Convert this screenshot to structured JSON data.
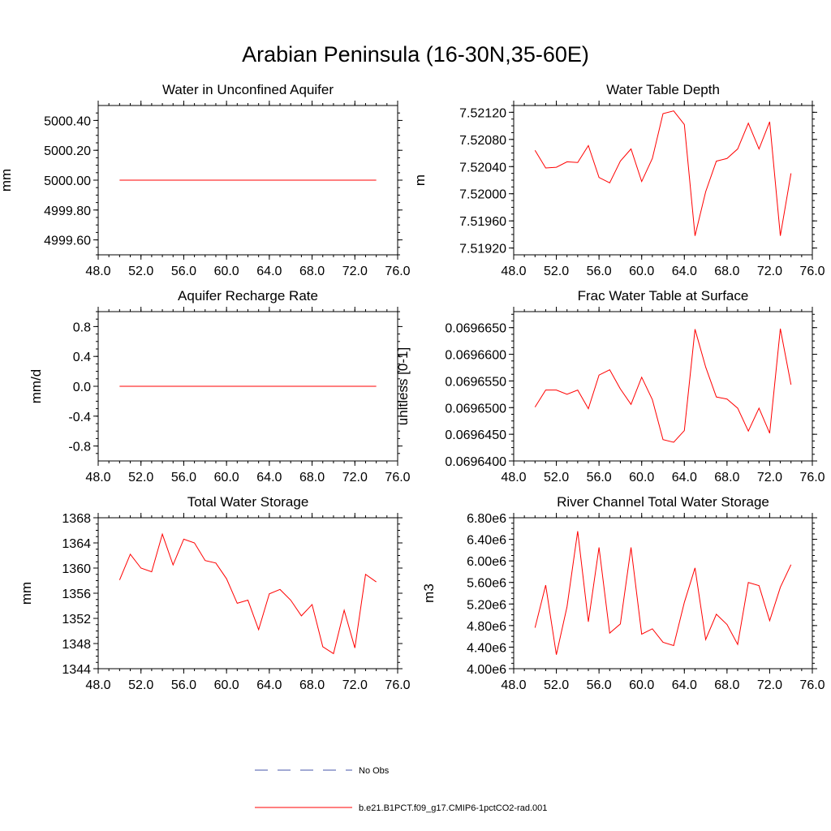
{
  "title": "Arabian Peninsula (16-30N,35-60E)",
  "chart_data": [
    {
      "type": "line",
      "title": "Water in Unconfined Aquifer",
      "ylabel": "mm",
      "xlim": [
        48,
        76
      ],
      "ylim": [
        4999.5,
        5000.5
      ],
      "xticks": [
        48,
        52,
        56,
        60,
        64,
        68,
        72,
        76
      ],
      "xtick_labels": [
        "48.0",
        "52.0",
        "56.0",
        "60.0",
        "64.0",
        "68.0",
        "72.0",
        "76.0"
      ],
      "yticks": [
        4999.6,
        4999.8,
        5000.0,
        5000.2,
        5000.4
      ],
      "ytick_labels": [
        "4999.60",
        "4999.80",
        "5000.00",
        "5000.20",
        "5000.40"
      ],
      "x": [
        50,
        51,
        52,
        53,
        54,
        55,
        56,
        57,
        58,
        59,
        60,
        61,
        62,
        63,
        64,
        65,
        66,
        67,
        68,
        69,
        70,
        71,
        72,
        73,
        74
      ],
      "series": [
        {
          "values": [
            5000.0,
            5000.0,
            5000.0,
            5000.0,
            5000.0,
            5000.0,
            5000.0,
            5000.0,
            5000.0,
            5000.0,
            5000.0,
            5000.0,
            5000.0,
            5000.0,
            5000.0,
            5000.0,
            5000.0,
            5000.0,
            5000.0,
            5000.0,
            5000.0,
            5000.0,
            5000.0,
            5000.0,
            5000.0
          ]
        }
      ]
    },
    {
      "type": "line",
      "title": "Water Table Depth",
      "ylabel": "m",
      "xlim": [
        48,
        76
      ],
      "ylim": [
        7.5191,
        7.5213
      ],
      "xticks": [
        48,
        52,
        56,
        60,
        64,
        68,
        72,
        76
      ],
      "xtick_labels": [
        "48.0",
        "52.0",
        "56.0",
        "60.0",
        "64.0",
        "68.0",
        "72.0",
        "76.0"
      ],
      "yticks": [
        7.5192,
        7.5196,
        7.52,
        7.5204,
        7.5208,
        7.5212
      ],
      "ytick_labels": [
        "7.51920",
        "7.51960",
        "7.52000",
        "7.52040",
        "7.52080",
        "7.52120"
      ],
      "x": [
        50,
        51,
        52,
        53,
        54,
        55,
        56,
        57,
        58,
        59,
        60,
        61,
        62,
        63,
        64,
        65,
        66,
        67,
        68,
        69,
        70,
        71,
        72,
        73,
        74
      ],
      "series": [
        {
          "values": [
            7.52064,
            7.52038,
            7.52039,
            7.52047,
            7.52046,
            7.52071,
            7.52024,
            7.52016,
            7.52048,
            7.52066,
            7.52018,
            7.52052,
            7.52118,
            7.52122,
            7.52102,
            7.51938,
            7.52003,
            7.52048,
            7.52052,
            7.52066,
            7.52104,
            7.52066,
            7.52106,
            7.51938,
            7.5203
          ]
        }
      ]
    },
    {
      "type": "line",
      "title": "Aquifer Recharge Rate",
      "ylabel": "mm/d",
      "xlim": [
        48,
        76
      ],
      "ylim": [
        -1.0,
        1.0
      ],
      "xticks": [
        48,
        52,
        56,
        60,
        64,
        68,
        72,
        76
      ],
      "xtick_labels": [
        "48.0",
        "52.0",
        "56.0",
        "60.0",
        "64.0",
        "68.0",
        "72.0",
        "76.0"
      ],
      "yticks": [
        -0.8,
        -0.4,
        0.0,
        0.4,
        0.8
      ],
      "ytick_labels": [
        "-0.8",
        "-0.4",
        "0.0",
        "0.4",
        "0.8"
      ],
      "x": [
        50,
        51,
        52,
        53,
        54,
        55,
        56,
        57,
        58,
        59,
        60,
        61,
        62,
        63,
        64,
        65,
        66,
        67,
        68,
        69,
        70,
        71,
        72,
        73,
        74
      ],
      "series": [
        {
          "values": [
            0,
            0,
            0,
            0,
            0,
            0,
            0,
            0,
            0,
            0,
            0,
            0,
            0,
            0,
            0,
            0,
            0,
            0,
            0,
            0,
            0,
            0,
            0,
            0,
            0
          ]
        }
      ]
    },
    {
      "type": "line",
      "title": "Frac Water Table at Surface",
      "ylabel": "unitless [0-1]",
      "xlim": [
        48,
        76
      ],
      "ylim": [
        0.06964,
        0.069668
      ],
      "xticks": [
        48,
        52,
        56,
        60,
        64,
        68,
        72,
        76
      ],
      "xtick_labels": [
        "48.0",
        "52.0",
        "56.0",
        "60.0",
        "64.0",
        "68.0",
        "72.0",
        "76.0"
      ],
      "yticks": [
        0.06964,
        0.069645,
        0.06965,
        0.069655,
        0.06966,
        0.069665
      ],
      "ytick_labels": [
        "0.0696400",
        "0.0696450",
        "0.0696500",
        "0.0696550",
        "0.0696600",
        "0.0696650"
      ],
      "x": [
        50,
        51,
        52,
        53,
        54,
        55,
        56,
        57,
        58,
        59,
        60,
        61,
        62,
        63,
        64,
        65,
        66,
        67,
        68,
        69,
        70,
        71,
        72,
        73,
        74
      ],
      "series": [
        {
          "values": [
            0.0696501,
            0.0696533,
            0.0696533,
            0.0696525,
            0.0696533,
            0.0696498,
            0.0696561,
            0.0696571,
            0.0696535,
            0.0696506,
            0.0696557,
            0.0696515,
            0.069644,
            0.0696435,
            0.0696457,
            0.0696647,
            0.0696576,
            0.069652,
            0.0696516,
            0.0696499,
            0.0696456,
            0.0696499,
            0.0696452,
            0.0696648,
            0.0696543
          ]
        }
      ]
    },
    {
      "type": "line",
      "title": "Total Water Storage",
      "ylabel": "mm",
      "xlim": [
        48,
        76
      ],
      "ylim": [
        1344,
        1368
      ],
      "xticks": [
        48,
        52,
        56,
        60,
        64,
        68,
        72,
        76
      ],
      "xtick_labels": [
        "48.0",
        "52.0",
        "56.0",
        "60.0",
        "64.0",
        "68.0",
        "72.0",
        "76.0"
      ],
      "yticks": [
        1344,
        1348,
        1352,
        1356,
        1360,
        1364,
        1368
      ],
      "ytick_labels": [
        "1344",
        "1348",
        "1352",
        "1356",
        "1360",
        "1364",
        "1368"
      ],
      "x": [
        50,
        51,
        52,
        53,
        54,
        55,
        56,
        57,
        58,
        59,
        60,
        61,
        62,
        63,
        64,
        65,
        66,
        67,
        68,
        69,
        70,
        71,
        72,
        73,
        74
      ],
      "series": [
        {
          "values": [
            1358.1,
            1362.2,
            1360.0,
            1359.4,
            1365.4,
            1360.5,
            1364.6,
            1364.0,
            1361.2,
            1360.8,
            1358.3,
            1354.4,
            1354.9,
            1350.2,
            1355.9,
            1356.6,
            1354.9,
            1352.4,
            1354.2,
            1347.5,
            1346.4,
            1353.3,
            1347.3,
            1359.0,
            1357.8
          ]
        }
      ]
    },
    {
      "type": "line",
      "title": "River Channel Total Water Storage",
      "ylabel": "m3",
      "xlim": [
        48,
        76
      ],
      "ylim": [
        4000000,
        6800000
      ],
      "xticks": [
        48,
        52,
        56,
        60,
        64,
        68,
        72,
        76
      ],
      "xtick_labels": [
        "48.0",
        "52.0",
        "56.0",
        "60.0",
        "64.0",
        "68.0",
        "72.0",
        "76.0"
      ],
      "yticks": [
        4000000,
        4400000,
        4800000,
        5200000,
        5600000,
        6000000,
        6400000,
        6800000
      ],
      "ytick_labels": [
        "4.00e6",
        "4.40e6",
        "4.80e6",
        "5.20e6",
        "5.60e6",
        "6.00e6",
        "6.40e6",
        "6.80e6"
      ],
      "x": [
        50,
        51,
        52,
        53,
        54,
        55,
        56,
        57,
        58,
        59,
        60,
        61,
        62,
        63,
        64,
        65,
        66,
        67,
        68,
        69,
        70,
        71,
        72,
        73,
        74
      ],
      "series": [
        {
          "values": [
            4760000,
            5550000,
            4260000,
            5150000,
            6550000,
            4870000,
            6250000,
            4660000,
            4830000,
            6250000,
            4640000,
            4740000,
            4490000,
            4430000,
            5230000,
            5870000,
            4540000,
            5010000,
            4820000,
            4450000,
            5600000,
            5540000,
            4890000,
            5510000,
            5930000
          ]
        }
      ]
    }
  ],
  "legend": {
    "items": [
      {
        "label": "No Obs",
        "color": "#4455aa",
        "style": "dashed"
      },
      {
        "label": "b.e21.B1PCT.f09_g17.CMIP6-1pctCO2-rad.001",
        "color": "#ff0000",
        "style": "solid"
      }
    ]
  },
  "colors": {
    "line": "#ff0000",
    "axes": "#000000",
    "obs": "#4455aa"
  }
}
